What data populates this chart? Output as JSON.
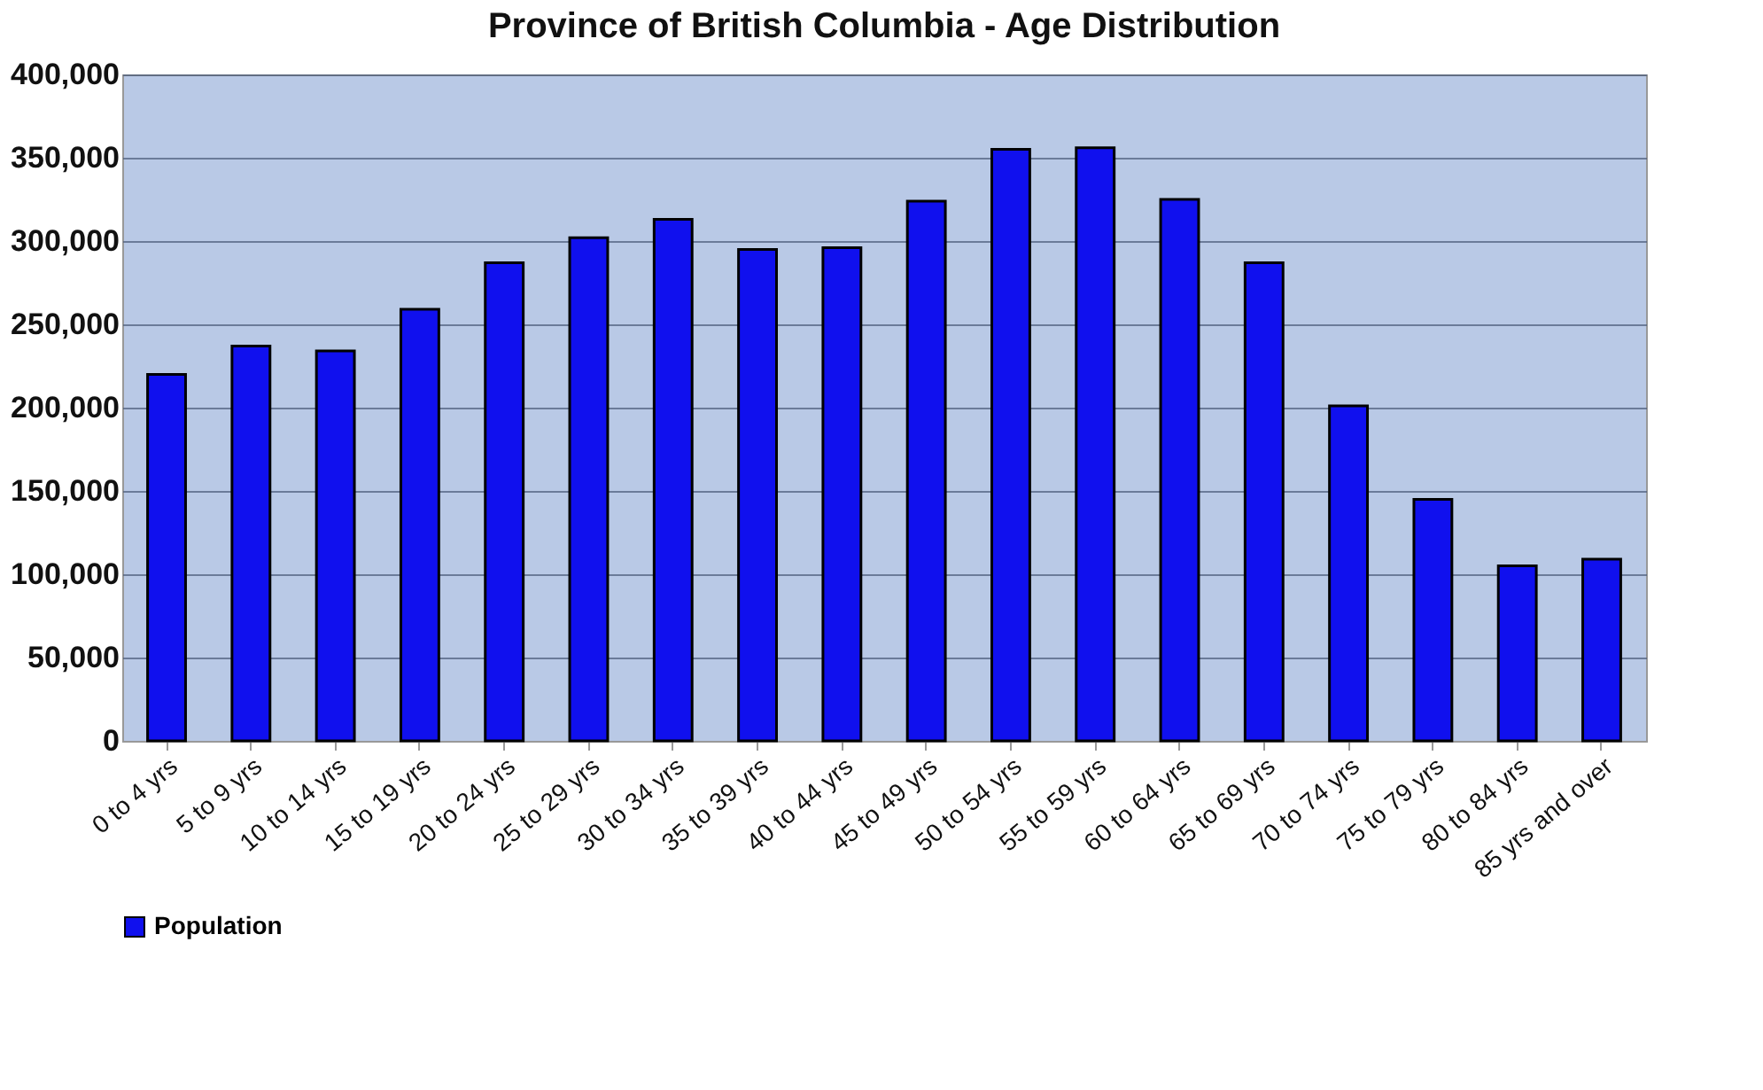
{
  "chart_data": {
    "type": "bar",
    "title": "Province of British Columbia - Age Distribution",
    "categories": [
      "0 to 4 yrs",
      "5 to 9 yrs",
      "10 to 14 yrs",
      "15 to 19 yrs",
      "20 to 24 yrs",
      "25 to 29 yrs",
      "30 to 34 yrs",
      "35 to 39 yrs",
      "40 to 44 yrs",
      "45 to 49 yrs",
      "50 to 54 yrs",
      "55 to 59 yrs",
      "60 to 64 yrs",
      "65 to 69 yrs",
      "70 to 74 yrs",
      "75 to 79 yrs",
      "80 to 84 yrs",
      "85 yrs and over"
    ],
    "series": [
      {
        "name": "Population",
        "color": "#1010ee",
        "values": [
          220000,
          237000,
          234000,
          259000,
          287000,
          302000,
          313000,
          295000,
          296000,
          324000,
          355000,
          356000,
          325000,
          287000,
          201000,
          145000,
          105000,
          109000
        ]
      }
    ],
    "ylim": [
      0,
      400000
    ],
    "yticks": [
      0,
      {
        "value": 50000,
        "label": "50,000"
      },
      {
        "value": 100000,
        "label": "100,000"
      },
      {
        "value": 150000,
        "label": "150,000"
      },
      {
        "value": 200000,
        "label": "200,000"
      },
      {
        "value": 250000,
        "label": "250,000"
      },
      {
        "value": 300000,
        "label": "300,000"
      },
      {
        "value": 350000,
        "label": "350,000"
      },
      {
        "value": 400000,
        "label": "400,000"
      }
    ],
    "grid": "y",
    "legend": "bottom"
  }
}
